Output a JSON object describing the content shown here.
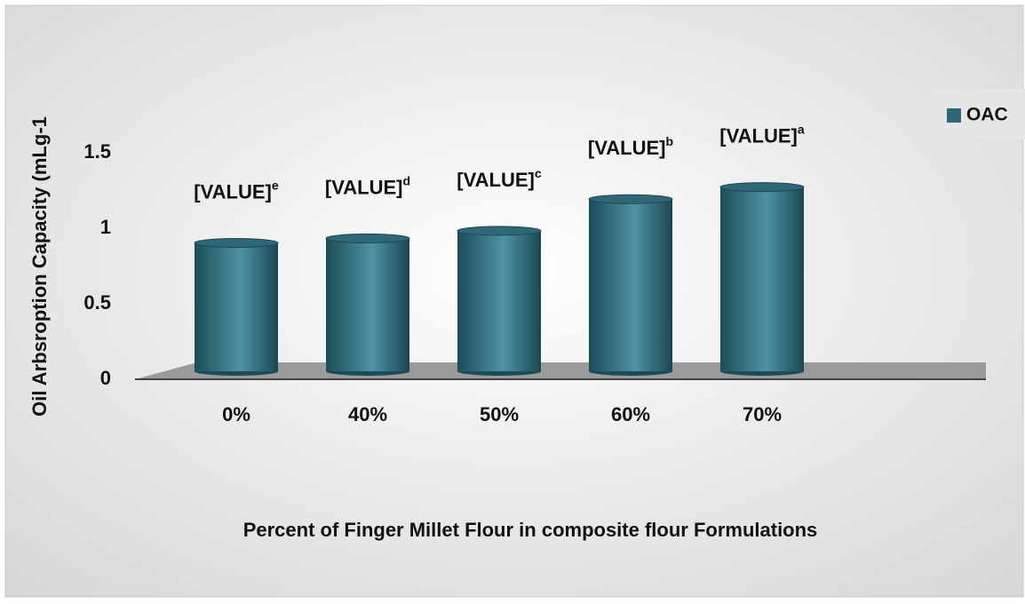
{
  "chart_data": {
    "type": "bar",
    "categories": [
      "0%",
      "40%",
      "50%",
      "60%",
      "70%"
    ],
    "series": [
      {
        "name": "OAC",
        "color": "#2e6878",
        "values": [
          0.85,
          0.88,
          0.93,
          1.14,
          1.22
        ]
      }
    ],
    "data_labels": [
      "[VALUE]",
      "[VALUE]",
      "[VALUE]",
      "[VALUE]",
      "[VALUE]"
    ],
    "superscripts": [
      "e",
      "d",
      "c",
      "b",
      "a"
    ],
    "ylim": [
      0,
      2
    ],
    "yticks": [
      0,
      0.5,
      1,
      1.5
    ],
    "y_axis_label": "Oil Arbsroption Capacity (mLg-1",
    "x_axis_label": "Percent of Finger Millet Flour in composite flour Formulations",
    "legend": "right",
    "grid": false
  }
}
